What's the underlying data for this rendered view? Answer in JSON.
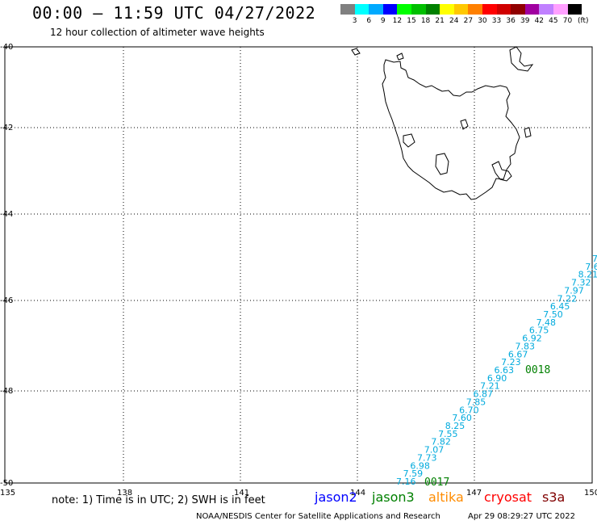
{
  "header": {
    "title": "00:00 – 11:59 UTC 04/27/2022",
    "subtitle": "12 hour collection of altimeter wave heights"
  },
  "legend": {
    "unit": "(ft)",
    "labels": [
      "3",
      "6",
      "9",
      "12",
      "15",
      "18",
      "21",
      "24",
      "27",
      "30",
      "33",
      "36",
      "39",
      "42",
      "45",
      "70"
    ],
    "colors": [
      "#808080",
      "#00ffff",
      "#00aaff",
      "#0000ff",
      "#00ff00",
      "#00c000",
      "#008000",
      "#ffff00",
      "#ffc800",
      "#ff8000",
      "#ff0000",
      "#d00000",
      "#900000",
      "#a000a0",
      "#c080ff",
      "#ffa0ff",
      "#000000"
    ]
  },
  "map": {
    "lon_labels": [
      "135",
      "138",
      "141",
      "144",
      "147",
      "150"
    ],
    "lat_labels": [
      "-40",
      "-42",
      "-44",
      "-46",
      "-48",
      "-50"
    ],
    "track": {
      "color": "#00aadd",
      "values": [
        "7.16",
        "7.59",
        "6.98",
        "7.73",
        "7.07",
        "7.82",
        "7.55",
        "8.25",
        "7.60",
        "6.70",
        "7.85",
        "6.87",
        "7.21",
        "6.90",
        "6.63",
        "7.23",
        "6.67",
        "7.83",
        "6.92",
        "6.75",
        "7.48",
        "7.50",
        "6.45",
        "7.22",
        "7.97",
        "7.32",
        "8.21",
        "7.6",
        "7."
      ]
    },
    "pass_labels": [
      {
        "text": "0017",
        "color": "#008000"
      },
      {
        "text": "0018",
        "color": "#008000"
      }
    ]
  },
  "footer": {
    "note": "note: 1) Time is in UTC; 2) SWH is in feet",
    "satellites": [
      {
        "name": "jason2",
        "color": "#0000ff"
      },
      {
        "name": "jason3",
        "color": "#008000"
      },
      {
        "name": "altika",
        "color": "#ff8c00"
      },
      {
        "name": "cryosat",
        "color": "#ff0000"
      },
      {
        "name": "s3a",
        "color": "#800000"
      }
    ],
    "credit": "NOAA/NESDIS Center for Satellite Applications and Research",
    "date": "Apr 29 08:29:27 UTC 2022"
  }
}
